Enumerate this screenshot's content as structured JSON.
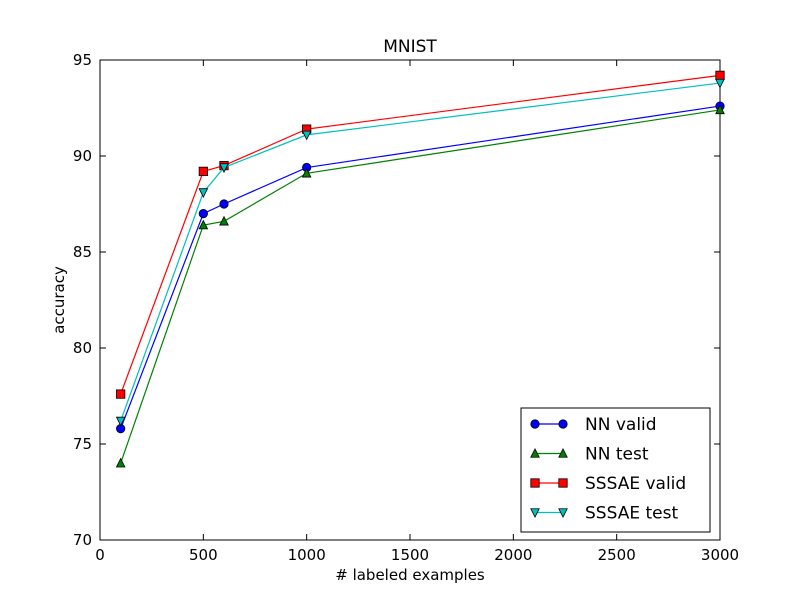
{
  "chart_data": {
    "type": "line",
    "title": "MNIST",
    "xlabel": "# labeled examples",
    "ylabel": "accuracy",
    "xlim": [
      0,
      3000
    ],
    "ylim": [
      70,
      95
    ],
    "xticks": [
      0,
      500,
      1000,
      1500,
      2000,
      2500,
      3000
    ],
    "yticks": [
      70,
      75,
      80,
      85,
      90,
      95
    ],
    "grid": false,
    "legend_position": "lower-right",
    "x": [
      100,
      500,
      600,
      1000,
      3000
    ],
    "series": [
      {
        "name": "NN valid",
        "color": "#0000ff",
        "marker": "circle",
        "values": [
          75.8,
          87.0,
          87.5,
          89.4,
          92.6
        ]
      },
      {
        "name": "NN test",
        "color": "#008000",
        "marker": "triangle-up",
        "values": [
          74.0,
          86.4,
          86.6,
          89.1,
          92.4
        ]
      },
      {
        "name": "SSSAE valid",
        "color": "#ff0000",
        "marker": "square",
        "values": [
          77.6,
          89.2,
          89.5,
          91.4,
          94.2
        ]
      },
      {
        "name": "SSSAE test",
        "color": "#00bfbf",
        "marker": "triangle-down",
        "values": [
          76.2,
          88.1,
          89.4,
          91.1,
          93.8
        ]
      }
    ]
  }
}
